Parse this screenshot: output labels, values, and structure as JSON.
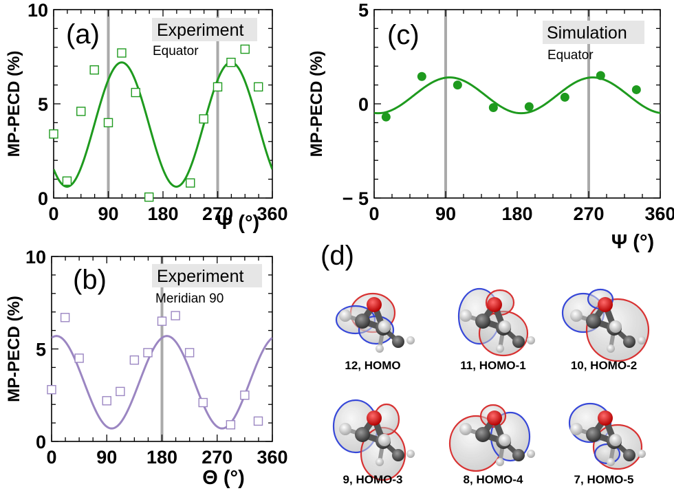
{
  "colors": {
    "green": "#1e9a1e",
    "purple": "#9b86c2",
    "grid_line": "#aaaaaa",
    "label_box": "#e6e6e6",
    "orbital_positive": "#d62828",
    "orbital_negative": "#2d3fd6"
  },
  "panel_d": {
    "letter": "(d)",
    "orbitals": [
      {
        "caption": "12, HOMO"
      },
      {
        "caption": "11, HOMO-1"
      },
      {
        "caption": "10, HOMO-2"
      },
      {
        "caption": "9, HOMO-3"
      },
      {
        "caption": "8, HOMO-4"
      },
      {
        "caption": "7, HOMO-5"
      }
    ]
  },
  "chart_data": [
    {
      "id": "a",
      "type": "scatter",
      "panel_letter": "(a)",
      "label_box": "Experiment",
      "sublabel": "Equator",
      "xlabel": "Ψ (°)",
      "ylabel": "MP-PECD (%)",
      "xlim": [
        0,
        360
      ],
      "ylim": [
        0,
        10
      ],
      "xticks": [
        0,
        90,
        180,
        270,
        360
      ],
      "yticks": [
        0,
        5,
        10
      ],
      "vlines": [
        90,
        270
      ],
      "marker": "open-square",
      "color": "#1e9a1e",
      "points": {
        "x": [
          0,
          22,
          45,
          67,
          90,
          112,
          135,
          157,
          225,
          247,
          270,
          292,
          315,
          337
        ],
        "y": [
          3.4,
          0.9,
          4.6,
          6.8,
          4.0,
          7.7,
          5.6,
          0.05,
          0.8,
          4.2,
          5.9,
          7.2,
          7.9,
          5.9
        ]
      },
      "fit": {
        "mean": 3.9,
        "amplitude": 3.3,
        "phase_deg": 112
      }
    },
    {
      "id": "b",
      "type": "scatter",
      "panel_letter": "(b)",
      "label_box": "Experiment",
      "sublabel": "Meridian 90",
      "xlabel": "Θ (°)",
      "ylabel": "MP-PECD (%)",
      "xlim": [
        0,
        360
      ],
      "ylim": [
        0,
        10
      ],
      "xticks": [
        0,
        90,
        180,
        270,
        360
      ],
      "yticks": [
        0,
        5,
        10
      ],
      "vlines": [
        180
      ],
      "marker": "open-square",
      "color": "#9b86c2",
      "points": {
        "x": [
          0,
          22,
          45,
          90,
          112,
          135,
          157,
          180,
          202,
          225,
          247,
          292,
          315,
          337
        ],
        "y": [
          2.8,
          6.7,
          4.5,
          2.2,
          2.7,
          4.4,
          4.8,
          6.5,
          6.8,
          4.8,
          2.1,
          0.9,
          2.5,
          1.1
        ]
      },
      "fit": {
        "mean": 3.2,
        "amplitude": 2.5,
        "phase_deg": 8
      }
    },
    {
      "id": "c",
      "type": "scatter",
      "panel_letter": "(c)",
      "label_box": "Simulation",
      "sublabel": "Equator",
      "xlabel": "Ψ (°)",
      "ylabel": "MP-PECD (%)",
      "xlim": [
        0,
        360
      ],
      "ylim": [
        -5,
        5
      ],
      "xticks": [
        0,
        90,
        180,
        270,
        360
      ],
      "ytick_labels": [
        "− 5",
        "0",
        "5"
      ],
      "yticks": [
        -5,
        0,
        5
      ],
      "vlines": [
        90,
        270
      ],
      "marker": "filled-circle",
      "color": "#1e9a1e",
      "points": {
        "x": [
          15,
          60,
          105,
          150,
          195,
          240,
          285,
          330
        ],
        "y": [
          -0.7,
          1.45,
          1.0,
          -0.2,
          -0.15,
          0.35,
          1.5,
          0.75
        ]
      },
      "fit": {
        "mean": 0.45,
        "amplitude": 0.95,
        "phase_deg": 95
      }
    }
  ]
}
